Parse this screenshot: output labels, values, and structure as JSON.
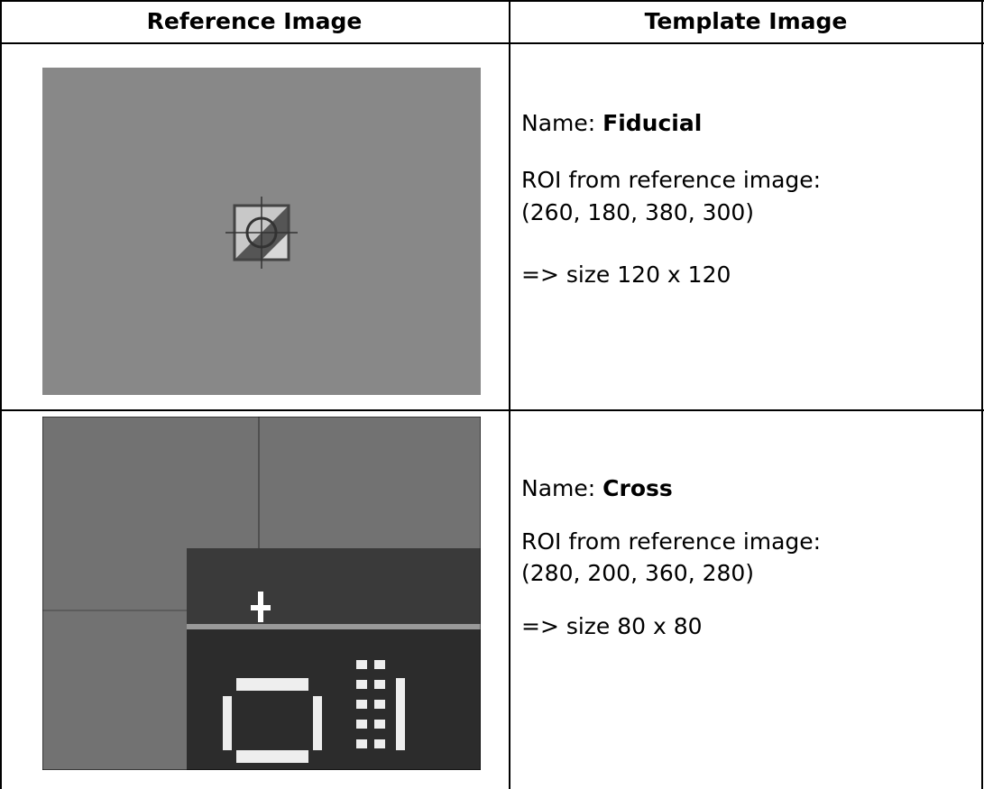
{
  "table": {
    "headers": [
      "Reference Image",
      "Template Image"
    ],
    "rows": [
      {
        "name_label": "Name:",
        "name": "Fiducial",
        "roi_label": "ROI from reference image:",
        "roi": "(260, 180, 380, 300)",
        "size": "=> size 120 x 120"
      },
      {
        "name_label": "Name:",
        "name": "Cross",
        "roi_label": "ROI from reference image:",
        "roi": "(280, 200, 360, 280)",
        "size": "=> size 80 x 80"
      }
    ]
  }
}
